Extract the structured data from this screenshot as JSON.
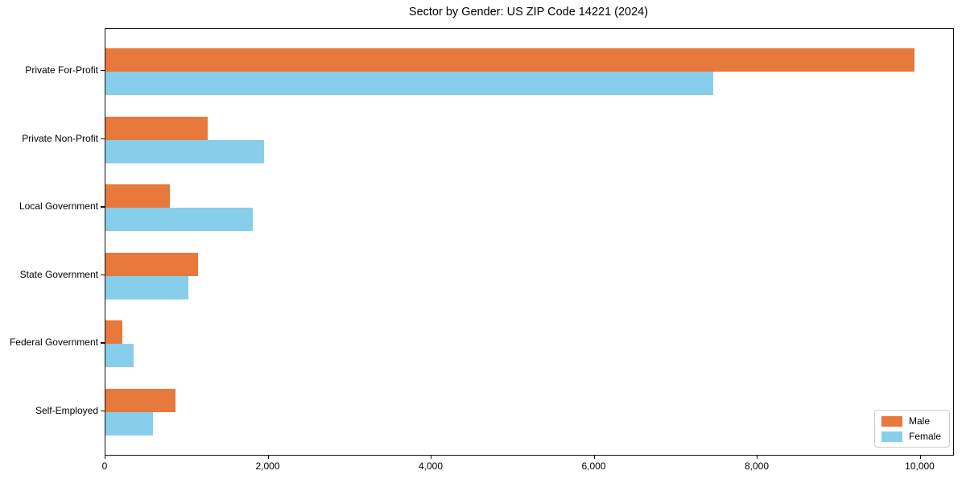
{
  "title": "Sector by Gender: US ZIP Code 14221 (2024)",
  "colors": {
    "male": "#E8793C",
    "female": "#87CEEB",
    "spine": "#111111",
    "legend_border": "#CCCCCC",
    "background": "#FFFFFF",
    "text": "#000000"
  },
  "legend": {
    "items": [
      {
        "label": "Male",
        "color": "#E8793C"
      },
      {
        "label": "Female",
        "color": "#87CEEB"
      }
    ]
  },
  "chart_data": {
    "type": "bar",
    "orientation": "horizontal",
    "title": "Sector by Gender: US ZIP Code 14221 (2024)",
    "categories": [
      "Private For-Profit",
      "Private Non-Profit",
      "Local Government",
      "State Government",
      "Federal Government",
      "Self-Employed"
    ],
    "series": [
      {
        "name": "Male",
        "color": "#E8793C",
        "values": [
          9930,
          1250,
          790,
          1140,
          210,
          860
        ]
      },
      {
        "name": "Female",
        "color": "#87CEEB",
        "values": [
          7460,
          1950,
          1810,
          1020,
          350,
          580
        ]
      }
    ],
    "xlabel": "",
    "ylabel": "",
    "xlim": [
      0,
      10400
    ],
    "xticks": [
      0,
      2000,
      4000,
      6000,
      8000,
      10000
    ],
    "xtick_labels": [
      "0",
      "2,000",
      "4,000",
      "6,000",
      "8,000",
      "10,000"
    ],
    "legend_position": "lower right",
    "grid": false
  }
}
